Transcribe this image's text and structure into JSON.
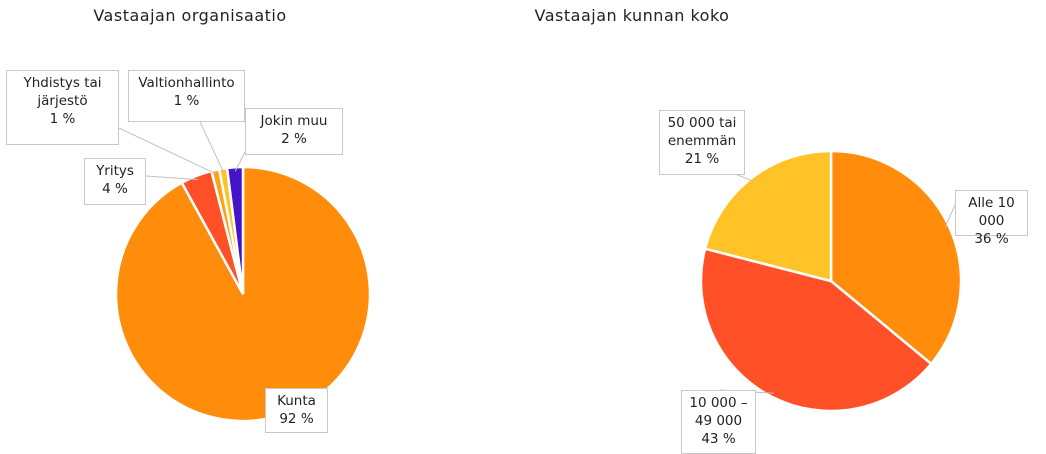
{
  "chart_data": [
    {
      "type": "pie",
      "title": "Vastaajan organisaatio",
      "categories": [
        "Kunta",
        "Yritys",
        "Yhdistys tai järjestö",
        "Valtionhallinto",
        "Jokin muu"
      ],
      "values": [
        92,
        4,
        1,
        1,
        2
      ],
      "value_labels": [
        "92 %",
        "4 %",
        "1 %",
        "1 %",
        "2 %"
      ],
      "colors": [
        "#ff8c0a",
        "#ff5028",
        "#ffa114",
        "#ffc328",
        "#4614c8"
      ]
    },
    {
      "type": "pie",
      "title": "Vastaajan kunnan koko",
      "categories": [
        "Alle 10 000",
        "10 000 – 49 000",
        "50 000 tai enemmän"
      ],
      "values": [
        36,
        43,
        21
      ],
      "value_labels": [
        "36 %",
        "43 %",
        "21 %"
      ],
      "colors": [
        "#ff8c0a",
        "#ff5028",
        "#ffc328"
      ]
    }
  ]
}
